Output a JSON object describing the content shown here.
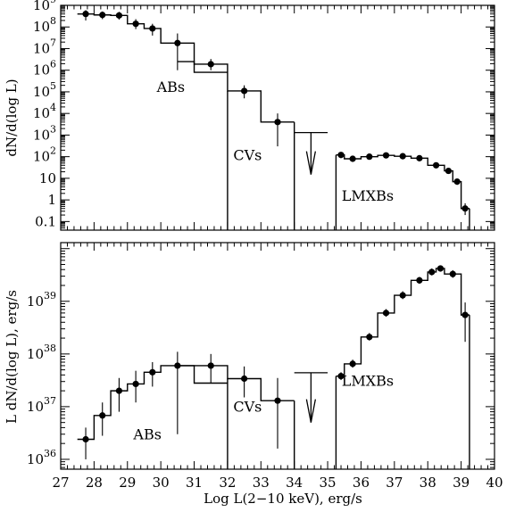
{
  "chart_data": [
    {
      "type": "line",
      "panel": "top",
      "ylabel": "dN/d(log L)",
      "y_scale": "log",
      "ylim": [
        0.04,
        1000000000.0
      ],
      "xlim": [
        27,
        40
      ],
      "y_ticks": [
        {
          "value": 1000000000.0,
          "base": "10",
          "exp": "9"
        },
        {
          "value": 100000000.0,
          "base": "10",
          "exp": "8"
        },
        {
          "value": 10000000.0,
          "base": "10",
          "exp": "7"
        },
        {
          "value": 1000000.0,
          "base": "10",
          "exp": "6"
        },
        {
          "value": 100000.0,
          "base": "10",
          "exp": "5"
        },
        {
          "value": 10000.0,
          "base": "10",
          "exp": "4"
        },
        {
          "value": 1000.0,
          "base": "10",
          "exp": "3"
        },
        {
          "value": 100,
          "base": "10",
          "exp": "2"
        },
        {
          "value": 10,
          "base": "10",
          "exp": ""
        },
        {
          "value": 1,
          "base": "1",
          "exp": ""
        },
        {
          "value": 0.1,
          "base": "0.1",
          "exp": ""
        }
      ],
      "annotations": [
        {
          "text": "ABs",
          "x": 30.3,
          "y": 100000.0
        },
        {
          "text": "CVs",
          "x": 32.6,
          "y": 70
        },
        {
          "text": "LMXBs",
          "x": 36.2,
          "y": 0.9
        }
      ],
      "series": [
        {
          "style": "step",
          "bins": [
            {
              "x0": 27.5,
              "x1": 28.0,
              "y": 400000000.0
            },
            {
              "x0": 28.0,
              "x1": 28.5,
              "y": 360000000.0
            },
            {
              "x0": 28.5,
              "x1": 29.0,
              "y": 340000000.0
            },
            {
              "x0": 29.0,
              "x1": 29.5,
              "y": 140000000.0
            },
            {
              "x0": 29.5,
              "x1": 30.0,
              "y": 85000000.0
            },
            {
              "x0": 30.0,
              "x1": 31.0,
              "y": 18000000.0
            },
            {
              "x0": 31.0,
              "x1": 32.0,
              "y": 1900000.0
            },
            {
              "x0": 32.0,
              "x1": 33.0,
              "y": 110000.0
            },
            {
              "x0": 33.0,
              "x1": 34.0,
              "y": 4000.0
            },
            {
              "x0": 35.25,
              "x1": 35.5,
              "y": 120
            },
            {
              "x0": 35.5,
              "x1": 36.0,
              "y": 80
            },
            {
              "x0": 36.0,
              "x1": 36.5,
              "y": 100
            },
            {
              "x0": 36.5,
              "x1": 37.0,
              "y": 115
            },
            {
              "x0": 37.0,
              "x1": 37.5,
              "y": 105
            },
            {
              "x0": 37.5,
              "x1": 38.0,
              "y": 85
            },
            {
              "x0": 38.0,
              "x1": 38.5,
              "y": 40
            },
            {
              "x0": 38.5,
              "x1": 38.75,
              "y": 22
            },
            {
              "x0": 38.75,
              "x1": 39.0,
              "y": 7
            },
            {
              "x0": 39.0,
              "x1": 39.25,
              "y": 0.4
            }
          ],
          "edges_to_floor": [
            32.0,
            34.0,
            35.25,
            39.25
          ]
        },
        {
          "style": "step",
          "bins": [
            {
              "x0": 30.5,
              "x1": 31.0,
              "y": 2500000.0
            },
            {
              "x0": 31.0,
              "x1": 32.0,
              "y": 800000.0
            }
          ]
        },
        {
          "style": "points",
          "points": [
            {
              "x": 27.75,
              "y": 400000000.0,
              "ylo": 200000000.0,
              "yhi": 600000000.0
            },
            {
              "x": 28.25,
              "y": 360000000.0,
              "ylo": 230000000.0,
              "yhi": 520000000.0
            },
            {
              "x": 28.75,
              "y": 340000000.0,
              "ylo": 220000000.0,
              "yhi": 500000000.0
            },
            {
              "x": 29.25,
              "y": 140000000.0,
              "ylo": 80000000.0,
              "yhi": 230000000.0
            },
            {
              "x": 29.75,
              "y": 85000000.0,
              "ylo": 40000000.0,
              "yhi": 140000000.0
            },
            {
              "x": 30.5,
              "y": 18000000.0,
              "ylo": 1000000.0,
              "yhi": 50000000.0
            },
            {
              "x": 31.5,
              "y": 1900000.0,
              "ylo": 1000000.0,
              "yhi": 3300000.0
            },
            {
              "x": 32.5,
              "y": 110000.0,
              "ylo": 50000.0,
              "yhi": 200000.0
            },
            {
              "x": 33.5,
              "y": 4000.0,
              "ylo": 300,
              "yhi": 10000.0
            },
            {
              "x": 35.4,
              "y": 120,
              "ylo": 95,
              "yhi": 150
            },
            {
              "x": 35.75,
              "y": 80,
              "ylo": 65,
              "yhi": 98
            },
            {
              "x": 36.25,
              "y": 100,
              "ylo": 85,
              "yhi": 118
            },
            {
              "x": 36.75,
              "y": 115,
              "ylo": 100,
              "yhi": 132
            },
            {
              "x": 37.25,
              "y": 105,
              "ylo": 90,
              "yhi": 122
            },
            {
              "x": 37.75,
              "y": 85,
              "ylo": 72,
              "yhi": 100
            },
            {
              "x": 38.25,
              "y": 40,
              "ylo": 33,
              "yhi": 48
            },
            {
              "x": 38.62,
              "y": 22,
              "ylo": 17,
              "yhi": 28
            },
            {
              "x": 38.88,
              "y": 7,
              "ylo": 5,
              "yhi": 9
            },
            {
              "x": 39.12,
              "y": 0.4,
              "ylo": 0.2,
              "yhi": 0.7
            }
          ]
        },
        {
          "style": "upper-limit",
          "x0": 34.0,
          "x1": 35.0,
          "y": 1300.0,
          "x_arrow": 34.5,
          "y_arrow_tip": 15
        }
      ]
    },
    {
      "type": "line",
      "panel": "bottom",
      "ylabel": "L dN/d(log L), erg/s",
      "xlabel": "Log L(2−10 keV), erg/s",
      "y_scale": "log",
      "ylim": [
        6.5e+35,
        1.3e+40
      ],
      "xlim": [
        27,
        40
      ],
      "x_ticks": [
        "27",
        "28",
        "29",
        "30",
        "31",
        "32",
        "33",
        "34",
        "35",
        "36",
        "37",
        "38",
        "39",
        "40"
      ],
      "y_ticks": [
        {
          "value": 1e+36,
          "base": "10",
          "exp": "36"
        },
        {
          "value": 1e+37,
          "base": "10",
          "exp": "37"
        },
        {
          "value": 1e+38,
          "base": "10",
          "exp": "38"
        },
        {
          "value": 1e+39,
          "base": "10",
          "exp": "39"
        }
      ],
      "annotations": [
        {
          "text": "ABs",
          "x": 29.6,
          "y": 2.4e+36
        },
        {
          "text": "CVs",
          "x": 32.6,
          "y": 8e+36
        },
        {
          "text": "LMXBs",
          "x": 36.2,
          "y": 2.5e+37
        }
      ],
      "series": [
        {
          "style": "step",
          "bins": [
            {
              "x0": 27.5,
              "x1": 28.0,
              "y": 2.4e+36
            },
            {
              "x0": 28.0,
              "x1": 28.5,
              "y": 6.8e+36
            },
            {
              "x0": 28.5,
              "x1": 29.0,
              "y": 2e+37
            },
            {
              "x0": 29.0,
              "x1": 29.5,
              "y": 2.7e+37
            },
            {
              "x0": 29.5,
              "x1": 30.0,
              "y": 4.5e+37
            },
            {
              "x0": 30.0,
              "x1": 31.0,
              "y": 6e+37
            },
            {
              "x0": 31.0,
              "x1": 32.0,
              "y": 6e+37
            },
            {
              "x0": 32.0,
              "x1": 33.0,
              "y": 3.4e+37
            },
            {
              "x0": 33.0,
              "x1": 34.0,
              "y": 1.3e+37
            },
            {
              "x0": 35.25,
              "x1": 35.5,
              "y": 3.8e+37
            },
            {
              "x0": 35.5,
              "x1": 36.0,
              "y": 6.5e+37
            },
            {
              "x0": 36.0,
              "x1": 36.5,
              "y": 2.1e+38
            },
            {
              "x0": 36.5,
              "x1": 37.0,
              "y": 6e+38
            },
            {
              "x0": 37.0,
              "x1": 37.5,
              "y": 1.3e+39
            },
            {
              "x0": 37.5,
              "x1": 38.0,
              "y": 2.5e+39
            },
            {
              "x0": 38.0,
              "x1": 38.25,
              "y": 3.6e+39
            },
            {
              "x0": 38.25,
              "x1": 38.5,
              "y": 4.2e+39
            },
            {
              "x0": 38.5,
              "x1": 39.0,
              "y": 3.3e+39
            },
            {
              "x0": 39.0,
              "x1": 39.25,
              "y": 5.5e+38
            }
          ],
          "edges_to_floor": [
            32.0,
            34.0,
            35.25,
            39.25
          ]
        },
        {
          "style": "step",
          "bins": [
            {
              "x0": 30.5,
              "x1": 31.0,
              "y": 6e+37
            },
            {
              "x0": 31.0,
              "x1": 32.0,
              "y": 2.8e+37
            }
          ]
        },
        {
          "style": "points",
          "points": [
            {
              "x": 27.75,
              "y": 2.4e+36,
              "ylo": 1e+36,
              "yhi": 4e+36
            },
            {
              "x": 28.25,
              "y": 6.8e+36,
              "ylo": 2.8e+36,
              "yhi": 1.2e+37
            },
            {
              "x": 28.75,
              "y": 2e+37,
              "ylo": 8e+36,
              "yhi": 3.5e+37
            },
            {
              "x": 29.25,
              "y": 2.7e+37,
              "ylo": 1.2e+37,
              "yhi": 4.8e+37
            },
            {
              "x": 29.75,
              "y": 4.5e+37,
              "ylo": 2.4e+37,
              "yhi": 7e+37
            },
            {
              "x": 30.5,
              "y": 6e+37,
              "ylo": 3e+36,
              "yhi": 1.1e+38
            },
            {
              "x": 31.5,
              "y": 6e+37,
              "ylo": 2.8e+37,
              "yhi": 1e+38
            },
            {
              "x": 32.5,
              "y": 3.4e+37,
              "ylo": 1.5e+37,
              "yhi": 5.8e+37
            },
            {
              "x": 33.5,
              "y": 1.3e+37,
              "ylo": 1.6e+36,
              "yhi": 3.5e+37
            },
            {
              "x": 35.4,
              "y": 3.8e+37,
              "ylo": 3.2e+37,
              "yhi": 4.5e+37
            },
            {
              "x": 35.75,
              "y": 6.5e+37,
              "ylo": 5.5e+37,
              "yhi": 7.8e+37
            },
            {
              "x": 36.25,
              "y": 2.1e+38,
              "ylo": 1.8e+38,
              "yhi": 2.5e+38
            },
            {
              "x": 36.75,
              "y": 6e+38,
              "ylo": 5.1e+38,
              "yhi": 7.1e+38
            },
            {
              "x": 37.25,
              "y": 1.3e+39,
              "ylo": 1.1e+39,
              "yhi": 1.55e+39
            },
            {
              "x": 37.75,
              "y": 2.5e+39,
              "ylo": 2.15e+39,
              "yhi": 2.9e+39
            },
            {
              "x": 38.12,
              "y": 3.6e+39,
              "ylo": 3.1e+39,
              "yhi": 4.2e+39
            },
            {
              "x": 38.38,
              "y": 4.2e+39,
              "ylo": 3.7e+39,
              "yhi": 4.8e+39
            },
            {
              "x": 38.75,
              "y": 3.3e+39,
              "ylo": 2.8e+39,
              "yhi": 3.9e+39
            },
            {
              "x": 39.12,
              "y": 5.5e+38,
              "ylo": 1.7e+38,
              "yhi": 9.5e+38
            }
          ]
        },
        {
          "style": "upper-limit",
          "x0": 34.0,
          "x1": 35.0,
          "y": 4.4e+37,
          "x_arrow": 34.5,
          "y_arrow_tip": 5e+36
        }
      ]
    }
  ]
}
